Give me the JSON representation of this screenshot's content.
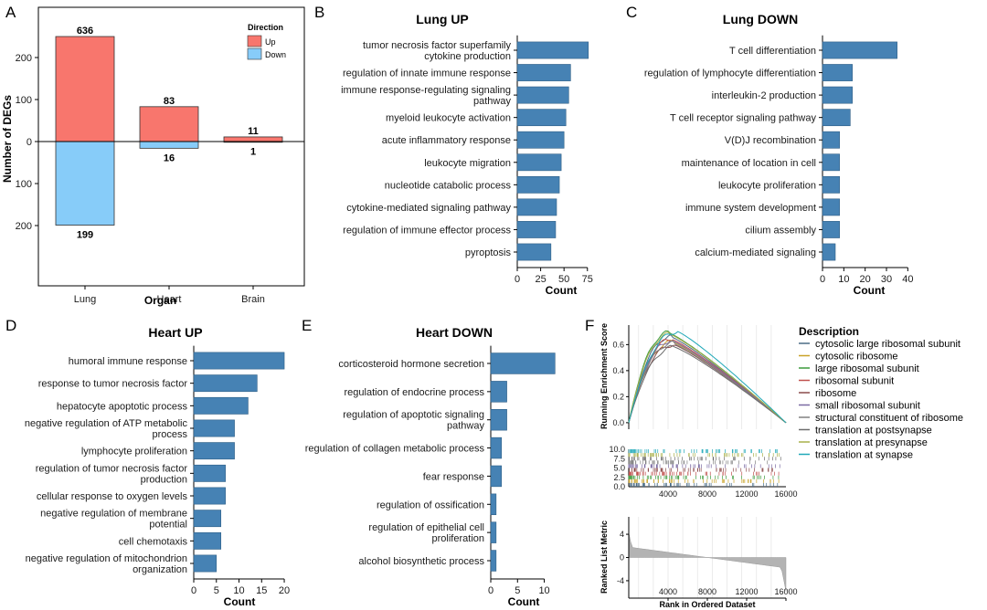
{
  "panels": {
    "a": {
      "label": "A",
      "chart_data": {
        "type": "bar",
        "categories": [
          "Lung",
          "Heart",
          "Brain"
        ],
        "series": [
          {
            "name": "Up",
            "values": [
              636,
              83,
              11
            ]
          },
          {
            "name": "Down",
            "values": [
              199,
              16,
              1
            ]
          }
        ],
        "axis_mapping_note": "",
        "xlabel": "Organ",
        "ylabel": "Number of DEGs",
        "yticks": [
          "200",
          "100",
          "0",
          "100",
          "200"
        ],
        "legend_title": "Direction",
        "legend_position": "top-right",
        "colors": {
          "Up": "#f8766d",
          "Down": "#87ccf9"
        },
        "grid": false
      }
    },
    "b": {
      "label": "B",
      "chart_data": {
        "type": "bar",
        "orientation": "horizontal",
        "title": "Lung UP",
        "categories": [
          "tumor necrosis factor superfamily cytokine production",
          "regulation of innate immune response",
          "immune response-regulating signaling pathway",
          "myeloid leukocyte activation",
          "acute inflammatory response",
          "leukocyte migration",
          "nucleotide catabolic process",
          "cytokine-mediated signaling pathway",
          "regulation of immune effector process",
          "pyroptosis"
        ],
        "labels": [
          [
            "tumor necrosis factor superfamily",
            "cytokine production"
          ],
          [
            "regulation of innate immune response"
          ],
          [
            "immune response-regulating signaling",
            "pathway"
          ],
          [
            "myeloid leukocyte activation"
          ],
          [
            "acute inflammatory response"
          ],
          [
            "leukocyte migration"
          ],
          [
            "nucleotide catabolic process"
          ],
          [
            "cytokine-mediated signaling pathway"
          ],
          [
            "regulation of immune effector process"
          ],
          [
            "pyroptosis"
          ]
        ],
        "values": [
          76,
          57,
          55,
          52,
          50,
          47,
          45,
          42,
          41,
          36
        ],
        "xlabel": "Count",
        "xticks": [
          0,
          25,
          50,
          75
        ],
        "xlim": [
          0,
          85
        ]
      }
    },
    "c": {
      "label": "C",
      "chart_data": {
        "type": "bar",
        "orientation": "horizontal",
        "title": "Lung DOWN",
        "categories": [
          "T cell differentiation",
          "regulation of lymphocyte differentiation",
          "interleukin-2 production",
          "T cell receptor signaling pathway",
          "V(D)J recombination",
          "maintenance of location in cell",
          "leukocyte proliferation",
          "immune system development",
          "cilium assembly",
          "calcium-mediated signaling"
        ],
        "labels": [
          [
            "T cell differentiation"
          ],
          [
            "regulation of lymphocyte differentiation"
          ],
          [
            "interleukin-2 production"
          ],
          [
            "T cell receptor signaling pathway"
          ],
          [
            "V(D)J recombination"
          ],
          [
            "maintenance of location in cell"
          ],
          [
            "leukocyte proliferation"
          ],
          [
            "immune system development"
          ],
          [
            "cilium assembly"
          ],
          [
            "calcium-mediated signaling"
          ]
        ],
        "values": [
          35,
          14,
          14,
          13,
          8,
          8,
          8,
          8,
          8,
          6
        ],
        "xlabel": "Count",
        "xticks": [
          0,
          10,
          20,
          30,
          40
        ],
        "xlim": [
          0,
          42
        ]
      }
    },
    "d": {
      "label": "D",
      "chart_data": {
        "type": "bar",
        "orientation": "horizontal",
        "title": "Heart UP",
        "categories": [
          "humoral immune response",
          "response to tumor necrosis factor",
          "hepatocyte apoptotic process",
          "negative regulation of ATP metabolic process",
          "lymphocyte proliferation",
          "regulation of tumor necrosis factor production",
          "cellular response to oxygen levels",
          "negative regulation of membrane potential",
          "cell chemotaxis",
          "negative regulation of mitochondrion organization"
        ],
        "labels": [
          [
            "humoral immune response"
          ],
          [
            "response to tumor necrosis factor"
          ],
          [
            "hepatocyte apoptotic process"
          ],
          [
            "negative regulation of ATP metabolic",
            "process"
          ],
          [
            "lymphocyte proliferation"
          ],
          [
            "regulation of tumor necrosis factor",
            "production"
          ],
          [
            "cellular response to oxygen levels"
          ],
          [
            "negative regulation of membrane",
            "potential"
          ],
          [
            "cell chemotaxis"
          ],
          [
            "negative regulation of mitochondrion",
            "organization"
          ]
        ],
        "values": [
          20,
          14,
          12,
          9,
          9,
          7,
          7,
          6,
          6,
          5
        ],
        "xlabel": "Count",
        "xticks": [
          0,
          5,
          10,
          15,
          20
        ],
        "xlim": [
          0,
          21
        ]
      }
    },
    "e": {
      "label": "E",
      "chart_data": {
        "type": "bar",
        "orientation": "horizontal",
        "title": "Heart DOWN",
        "categories": [
          "corticosteroid hormone secretion",
          "regulation of endocrine process",
          "regulation of apoptotic signaling pathway",
          "regulation of collagen metabolic process",
          "fear response",
          "regulation of ossification",
          "regulation of epithelial cell proliferation",
          "alcohol biosynthetic process"
        ],
        "labels": [
          [
            "corticosteroid hormone secretion"
          ],
          [
            "regulation of endocrine process"
          ],
          [
            "regulation of apoptotic signaling",
            "pathway"
          ],
          [
            "regulation of collagen metabolic process"
          ],
          [
            "fear response"
          ],
          [
            "regulation of ossification"
          ],
          [
            "regulation of epithelial cell",
            "proliferation"
          ],
          [
            "alcohol biosynthetic process"
          ]
        ],
        "values": [
          12,
          3,
          3,
          2,
          2,
          1,
          1,
          1
        ],
        "xlabel": "Count",
        "xticks": [
          0,
          5,
          10
        ],
        "xlim": [
          0,
          14
        ]
      }
    },
    "f": {
      "label": "F",
      "chart_data": {
        "type": "line",
        "legend_title": "Description",
        "legend_position": "right",
        "series": [
          {
            "name": "cytosolic large ribosomal subunit",
            "color": "#4a6c86",
            "peak_rank": 4300,
            "peak_es": 0.66
          },
          {
            "name": "cytosolic ribosome",
            "color": "#c9a227",
            "peak_rank": 4500,
            "peak_es": 0.62
          },
          {
            "name": "large ribosomal subunit",
            "color": "#3c9a3c",
            "peak_rank": 4100,
            "peak_es": 0.69
          },
          {
            "name": "ribosomal subunit",
            "color": "#c0504d",
            "peak_rank": 4400,
            "peak_es": 0.64
          },
          {
            "name": "ribosome",
            "color": "#8b4a4a",
            "peak_rank": 4600,
            "peak_es": 0.6
          },
          {
            "name": "small ribosomal subunit",
            "color": "#7a6aa3",
            "peak_rank": 4400,
            "peak_es": 0.63
          },
          {
            "name": "structural constituent of ribosome",
            "color": "#808080",
            "peak_rank": 4500,
            "peak_es": 0.61
          },
          {
            "name": "translation at postsynapse",
            "color": "#6d6d6d",
            "peak_rank": 4700,
            "peak_es": 0.58
          },
          {
            "name": "translation at presynapse",
            "color": "#a9b04a",
            "peak_rank": 4200,
            "peak_es": 0.68
          },
          {
            "name": "translation at synapse",
            "color": "#1fa8b8",
            "peak_rank": 5000,
            "peak_es": 0.7
          }
        ],
        "top_ylabel": "Running Enrichment Score",
        "top_yticks": [
          "0.0",
          "0.2",
          "0.4",
          "0.6"
        ],
        "top_ylim": [
          -0.05,
          0.75
        ],
        "mid_yticks": [
          "0.0",
          "2.5",
          "5.0",
          "7.5",
          "10.0"
        ],
        "mid_ylim": [
          0,
          10
        ],
        "xticks": [
          4000,
          8000,
          12000,
          16000
        ],
        "xlim": [
          0,
          16000
        ],
        "bottom_ylabel": "Ranked List Metric",
        "bottom_yticks": [
          "4",
          "0",
          "-4"
        ],
        "bottom_ylim": [
          -7,
          7
        ],
        "xlabel": "Rank in Ordered Dataset",
        "grid_lines": true
      }
    }
  },
  "palette": {
    "bar_h": "#4682b4",
    "bar_edge": "#2f5f86",
    "gray_metric": "#b3b3b3",
    "grid": "#e6e6e6"
  }
}
